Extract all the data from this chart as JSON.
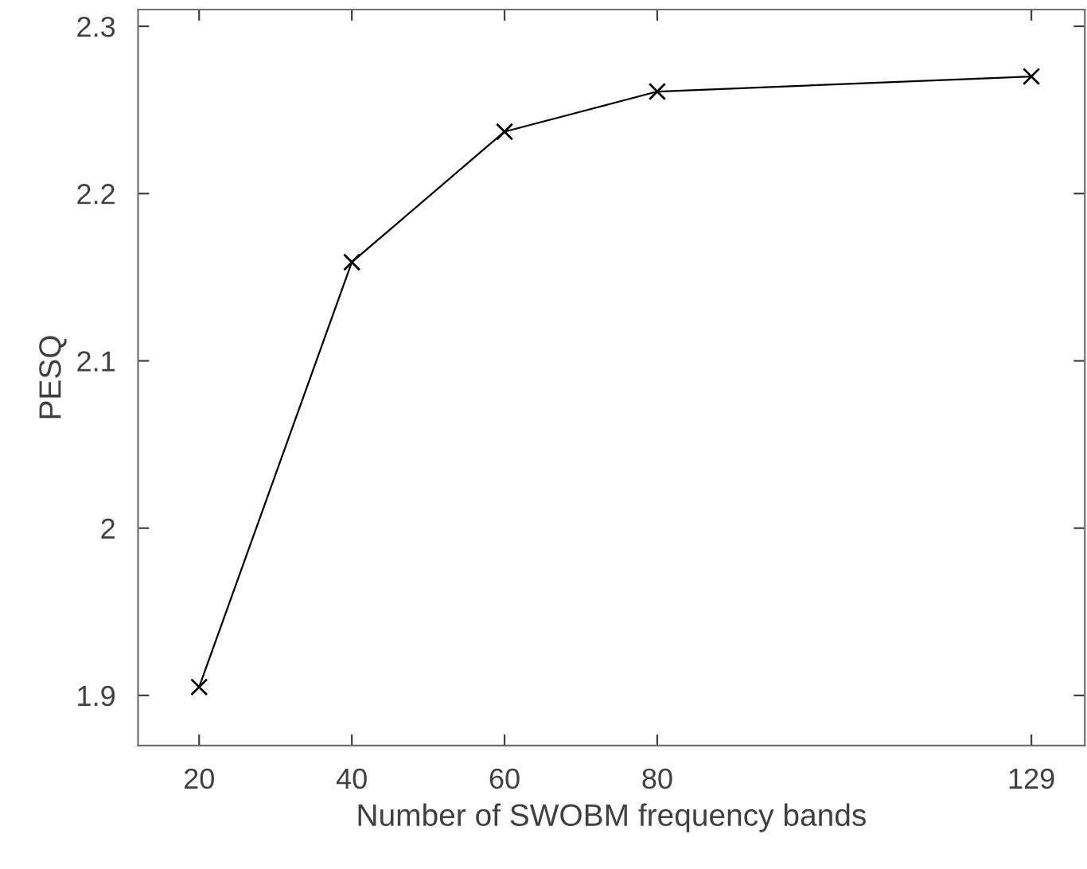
{
  "chart_data": {
    "type": "line",
    "xlabel": "Number of SWOBM frequency bands",
    "ylabel": "PESQ",
    "x": [
      20,
      40,
      60,
      80,
      129
    ],
    "series": [
      {
        "color": "#000000",
        "values": [
          1.905,
          2.159,
          2.237,
          2.261,
          2.27
        ]
      }
    ],
    "xlim": [
      12,
      136
    ],
    "xticks": [
      20,
      40,
      60,
      80,
      129
    ],
    "ylim": [
      1.87,
      2.31
    ],
    "yticks": [
      {
        "value": 1.9,
        "label": "1.9"
      },
      2,
      2.1,
      2.2,
      2.3
    ],
    "marker": "cross",
    "line_style": "solid"
  }
}
